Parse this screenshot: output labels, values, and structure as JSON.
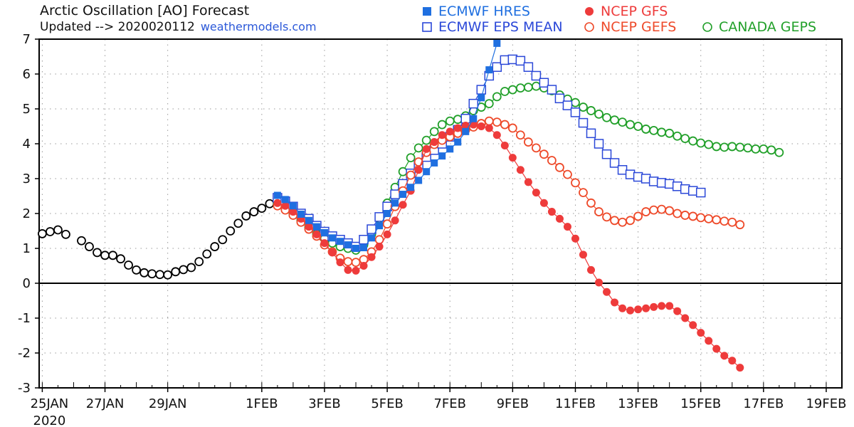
{
  "title": "Arctic Oscillation [AO] Forecast",
  "updated_label": "Updated --> 2020020112",
  "site": "weathermodels.com",
  "legend": [
    {
      "name": "ECMWF HRES",
      "color": "#1f6fe0",
      "marker": "square-filled"
    },
    {
      "name": "ECMWF EPS MEAN",
      "color": "#2b48d8",
      "marker": "square-open"
    },
    {
      "name": "NCEP GFS",
      "color": "#ee3b3b",
      "marker": "circle-filled"
    },
    {
      "name": "NCEP GEFS",
      "color": "#ee4a2a",
      "marker": "circle-open"
    },
    {
      "name": "CANADA GEPS",
      "color": "#22a02a",
      "marker": "circle-open"
    }
  ],
  "chart_data": {
    "type": "line",
    "title": "Arctic Oscillation [AO] Forecast",
    "xlabel": "",
    "ylabel": "",
    "x_unit": "days since 25 Jan 2020",
    "xlim": [
      -0.1,
      25.5
    ],
    "ylim": [
      -3,
      7
    ],
    "yticks": [
      -3,
      -2,
      -1,
      0,
      1,
      2,
      3,
      4,
      5,
      6,
      7
    ],
    "xticks": [
      {
        "x": 0,
        "label": "25JAN",
        "sublabel": "2020"
      },
      {
        "x": 2,
        "label": "27JAN"
      },
      {
        "x": 4,
        "label": "29JAN"
      },
      {
        "x": 7,
        "label": "1FEB"
      },
      {
        "x": 9,
        "label": "3FEB"
      },
      {
        "x": 11,
        "label": "5FEB"
      },
      {
        "x": 13,
        "label": "7FEB"
      },
      {
        "x": 15,
        "label": "9FEB"
      },
      {
        "x": 17,
        "label": "11FEB"
      },
      {
        "x": 19,
        "label": "13FEB"
      },
      {
        "x": 21,
        "label": "15FEB"
      },
      {
        "x": 23,
        "label": "17FEB"
      },
      {
        "x": 25,
        "label": "19FEB"
      }
    ],
    "grid": true,
    "series": [
      {
        "name": "Observed",
        "color": "#000000",
        "marker": "circle-open",
        "line": false,
        "x0": 0,
        "dx": 0.25,
        "values": [
          1.42,
          1.48,
          1.53,
          1.4,
          null,
          1.22,
          1.05,
          0.88,
          0.8,
          0.8,
          0.7,
          0.52,
          0.38,
          0.3,
          0.27,
          0.25,
          0.24,
          0.33,
          0.39,
          0.45,
          0.62,
          0.84,
          1.05,
          1.25,
          1.5,
          1.72,
          1.93,
          2.05,
          2.15,
          2.28,
          2.38,
          2.35
        ]
      },
      {
        "name": "CANADA GEPS",
        "color": "#22a02a",
        "marker": "circle-open",
        "line": true,
        "x0": 7.5,
        "dx": 0.25,
        "values": [
          2.28,
          2.15,
          2.0,
          1.8,
          1.6,
          1.42,
          1.28,
          1.15,
          1.05,
          1.0,
          0.95,
          1.1,
          1.4,
          1.85,
          2.3,
          2.75,
          3.2,
          3.6,
          3.88,
          4.1,
          4.35,
          4.55,
          4.65,
          4.7,
          4.8,
          4.95,
          5.05,
          5.15,
          5.35,
          5.5,
          5.55,
          5.6,
          5.62,
          5.65,
          5.6,
          5.52,
          5.4,
          5.28,
          5.18,
          5.05,
          4.95,
          4.85,
          4.75,
          4.68,
          4.62,
          4.55,
          4.5,
          4.42,
          4.38,
          4.33,
          4.3,
          4.22,
          4.15,
          4.08,
          4.02,
          3.98,
          3.92,
          3.9,
          3.92,
          3.9,
          3.88,
          3.85,
          3.85,
          3.82,
          3.75
        ]
      },
      {
        "name": "ECMWF EPS MEAN",
        "color": "#2b48d8",
        "marker": "square-open",
        "line": true,
        "x0": 7.5,
        "dx": 0.25,
        "values": [
          2.45,
          2.35,
          2.2,
          2.0,
          1.85,
          1.65,
          1.48,
          1.35,
          1.25,
          1.15,
          1.05,
          1.25,
          1.55,
          1.9,
          2.2,
          2.55,
          2.85,
          3.15,
          3.4,
          3.62,
          3.82,
          4.0,
          4.2,
          4.4,
          4.72,
          5.15,
          5.55,
          5.95,
          6.2,
          6.4,
          6.42,
          6.38,
          6.2,
          5.95,
          5.75,
          5.55,
          5.3,
          5.1,
          4.9,
          4.6,
          4.3,
          4.0,
          3.7,
          3.45,
          3.25,
          3.12,
          3.05,
          3.0,
          2.92,
          2.88,
          2.85,
          2.78,
          2.7,
          2.65,
          2.6
        ]
      },
      {
        "name": "NCEP GEFS",
        "color": "#ee4a2a",
        "marker": "circle-open",
        "line": true,
        "x0": 7.5,
        "dx": 0.25,
        "values": [
          2.22,
          2.1,
          1.95,
          1.75,
          1.55,
          1.35,
          1.1,
          0.9,
          0.72,
          0.62,
          0.6,
          0.68,
          0.9,
          1.25,
          1.7,
          2.2,
          2.65,
          3.1,
          3.48,
          3.75,
          3.98,
          4.1,
          4.2,
          4.3,
          4.4,
          4.48,
          4.58,
          4.65,
          4.62,
          4.55,
          4.45,
          4.25,
          4.05,
          3.88,
          3.7,
          3.52,
          3.32,
          3.12,
          2.88,
          2.6,
          2.3,
          2.05,
          1.9,
          1.8,
          1.75,
          1.8,
          1.92,
          2.05,
          2.1,
          2.12,
          2.08,
          2.0,
          1.95,
          1.92,
          1.88,
          1.85,
          1.82,
          1.78,
          1.75,
          1.68
        ]
      },
      {
        "name": "NCEP GFS",
        "color": "#ee3b3b",
        "marker": "circle-filled",
        "line": true,
        "x0": 7.5,
        "dx": 0.25,
        "values": [
          2.3,
          2.22,
          2.05,
          1.85,
          1.62,
          1.4,
          1.15,
          0.88,
          0.6,
          0.38,
          0.36,
          0.5,
          0.75,
          1.05,
          1.4,
          1.8,
          2.25,
          2.65,
          3.25,
          3.85,
          4.05,
          4.25,
          4.35,
          4.45,
          4.52,
          4.55,
          4.5,
          4.45,
          4.25,
          3.95,
          3.6,
          3.25,
          2.9,
          2.6,
          2.3,
          2.05,
          1.85,
          1.62,
          1.28,
          0.82,
          0.38,
          0.02,
          -0.25,
          -0.55,
          -0.72,
          -0.78,
          -0.75,
          -0.72,
          -0.68,
          -0.65,
          -0.65,
          -0.8,
          -1.0,
          -1.2,
          -1.42,
          -1.65,
          -1.88,
          -2.08,
          -2.22,
          -2.42
        ]
      },
      {
        "name": "ECMWF HRES",
        "color": "#1f6fe0",
        "marker": "square-filled",
        "line": true,
        "x0": 7.5,
        "dx": 0.25,
        "values": [
          2.52,
          2.4,
          2.22,
          1.98,
          1.8,
          1.62,
          1.45,
          1.3,
          1.2,
          1.1,
          1.0,
          1.02,
          1.3,
          1.65,
          2.0,
          2.3,
          2.55,
          2.75,
          2.95,
          3.2,
          3.45,
          3.65,
          3.85,
          4.05,
          4.35,
          4.72,
          5.32,
          6.12,
          6.88
        ]
      }
    ]
  }
}
